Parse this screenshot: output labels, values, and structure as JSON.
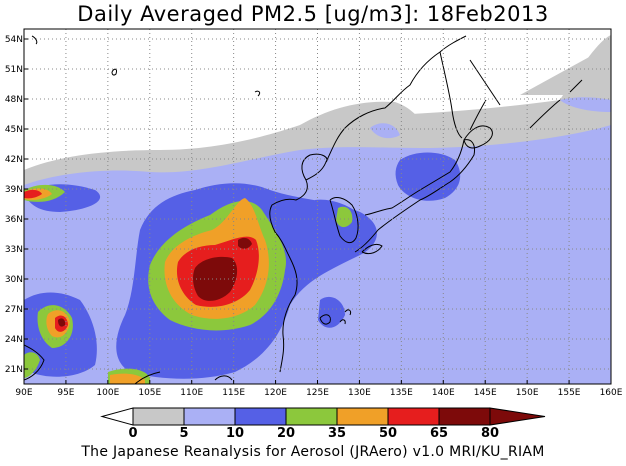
{
  "title": "Daily Averaged PM2.5 [ug/m3]: 18Feb2013",
  "footer": "The Japanese Reanalysis for Aerosol (JRAero) v1.0 MRI/KU_RIAM",
  "map": {
    "lon_range": [
      90,
      160
    ],
    "lat_range": [
      19.5,
      55
    ],
    "lon_ticks": [
      "90E",
      "95E",
      "100E",
      "105E",
      "110E",
      "115E",
      "120E",
      "125E",
      "130E",
      "135E",
      "140E",
      "145E",
      "150E",
      "155E",
      "160E"
    ],
    "lat_ticks": [
      "21N",
      "24N",
      "27N",
      "30N",
      "33N",
      "36N",
      "39N",
      "42N",
      "45N",
      "48N",
      "51N",
      "54N"
    ],
    "lat_tick_values": [
      21,
      24,
      27,
      30,
      33,
      36,
      39,
      42,
      45,
      48,
      51,
      54
    ],
    "gridlines": true
  },
  "colorbar": {
    "levels": [
      "0",
      "5",
      "10",
      "20",
      "35",
      "50",
      "65",
      "80"
    ],
    "colors": [
      "#ffffff",
      "#c8c8c8",
      "#aab0f5",
      "#5560e6",
      "#8cc83c",
      "#f0a028",
      "#e61e1e",
      "#7d0a0a"
    ],
    "below_color": "#ffffff",
    "above_color": "#7d0a0a"
  }
}
